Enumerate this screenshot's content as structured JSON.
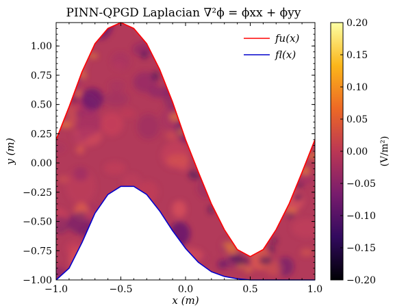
{
  "chart_data": {
    "type": "heatmap",
    "title": "PINN-QPGD Laplacian ∇²ϕ = ϕxx + ϕyy",
    "xlabel": "x (m)",
    "ylabel": "y (m)",
    "xlim": [
      -1.0,
      1.0
    ],
    "ylim": [
      -1.0,
      1.2
    ],
    "x_ticks": [
      -1.0,
      -0.5,
      0.0,
      0.5,
      1.0
    ],
    "x_tick_labels": [
      "−1.0",
      "−0.5",
      "0.0",
      "0.5",
      "1.0"
    ],
    "y_ticks": [
      -1.0,
      -0.75,
      -0.5,
      -0.25,
      0.0,
      0.25,
      0.5,
      0.75,
      1.0
    ],
    "y_tick_labels": [
      "−1.00",
      "−0.75",
      "−0.50",
      "−0.25",
      "0.00",
      "0.25",
      "0.50",
      "0.75",
      "1.00"
    ],
    "series": [
      {
        "name": "fu(x)",
        "color": "#ff0000",
        "x": [
          -1.0,
          -0.9,
          -0.8,
          -0.7,
          -0.6,
          -0.5,
          -0.4,
          -0.3,
          -0.2,
          -0.1,
          0.0,
          0.1,
          0.2,
          0.3,
          0.4,
          0.5,
          0.6,
          0.7,
          0.8,
          0.9,
          1.0
        ],
        "y": [
          0.2,
          0.48,
          0.78,
          1.02,
          1.15,
          1.2,
          1.15,
          1.02,
          0.8,
          0.52,
          0.2,
          -0.08,
          -0.35,
          -0.57,
          -0.74,
          -0.8,
          -0.74,
          -0.57,
          -0.35,
          -0.08,
          0.2
        ]
      },
      {
        "name": "fl(x)",
        "color": "#0000cc",
        "x": [
          -1.0,
          -0.9,
          -0.8,
          -0.7,
          -0.6,
          -0.5,
          -0.4,
          -0.3,
          -0.2,
          -0.1,
          0.0,
          0.1,
          0.2,
          0.3,
          0.4,
          0.5,
          0.6,
          0.7,
          0.8,
          0.9,
          1.0
        ],
        "y": [
          -1.0,
          -0.9,
          -0.68,
          -0.43,
          -0.27,
          -0.2,
          -0.2,
          -0.27,
          -0.41,
          -0.58,
          -0.73,
          -0.85,
          -0.93,
          -0.97,
          -0.99,
          -1.0,
          -1.0,
          -1.0,
          -1.0,
          -1.0,
          -1.0
        ]
      }
    ],
    "legend": {
      "position": "top-right",
      "entries": [
        "fu(x)",
        "fl(x)"
      ]
    },
    "colorbar": {
      "label": "(V/m²)",
      "min": -0.2,
      "max": 0.2,
      "ticks": [
        0.2,
        0.15,
        0.1,
        0.05,
        0.0,
        -0.05,
        -0.1,
        -0.15,
        -0.2
      ],
      "tick_labels": [
        "0.20",
        "0.15",
        "0.10",
        "0.05",
        "0.00",
        "−0.05",
        "−0.10",
        "−0.15",
        "−0.20"
      ],
      "colormap": "inferno",
      "colors": [
        "#000004",
        "#320a5e",
        "#781c6d",
        "#bb3754",
        "#ed6925",
        "#fbb61a",
        "#fcffa4"
      ]
    },
    "grid": false
  }
}
